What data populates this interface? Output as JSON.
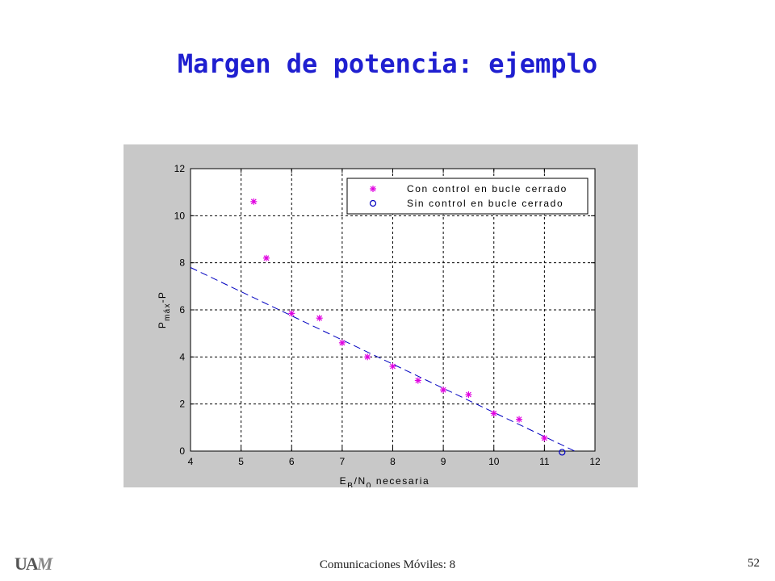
{
  "slide": {
    "title": "Margen de potencia: ejemplo",
    "footer": "Comunicaciones Móviles: 8",
    "page_number": "52",
    "logo_text": "UAM"
  },
  "colors": {
    "title": "#1f1fd0",
    "series1": "#e000e0",
    "series2": "#0000c0",
    "fit_line": "#0000c0",
    "panel": "#c8c8c8"
  },
  "chart_data": {
    "type": "scatter",
    "xlim": [
      4,
      12
    ],
    "ylim": [
      0,
      12
    ],
    "xticks": [
      4,
      5,
      6,
      7,
      8,
      9,
      10,
      11,
      12
    ],
    "yticks": [
      0,
      2,
      4,
      6,
      8,
      10,
      12
    ],
    "grid": true,
    "legend_position": "top-right",
    "ylabel": "P máx -P",
    "ylabel_main": "P",
    "ylabel_sub": "máx",
    "ylabel_rest": "-P",
    "xlabel": "E B/N 0 necesaria",
    "xlabel_e": "E",
    "xlabel_e_sub": "B",
    "xlabel_mid": "/N",
    "xlabel_n_sub": "0",
    "xlabel_rest": " necesaria",
    "series": [
      {
        "name": "Con control en bucle cerrado",
        "marker": "star",
        "x": [
          5.25,
          5.5,
          6.0,
          6.55,
          7.0,
          7.5,
          8.0,
          8.5,
          9.0,
          9.5,
          10.0,
          10.5,
          11.0
        ],
        "y": [
          10.6,
          8.2,
          5.85,
          5.65,
          4.6,
          4.0,
          3.6,
          3.0,
          2.6,
          2.4,
          1.6,
          1.35,
          0.55
        ]
      },
      {
        "name": "Sin control en bucle cerrado",
        "marker": "circle",
        "x": [
          11.35
        ],
        "y": [
          -0.05
        ]
      }
    ],
    "fit_line": {
      "style": "dashed",
      "x": [
        4.0,
        11.6
      ],
      "y": [
        7.8,
        0.0
      ]
    }
  }
}
